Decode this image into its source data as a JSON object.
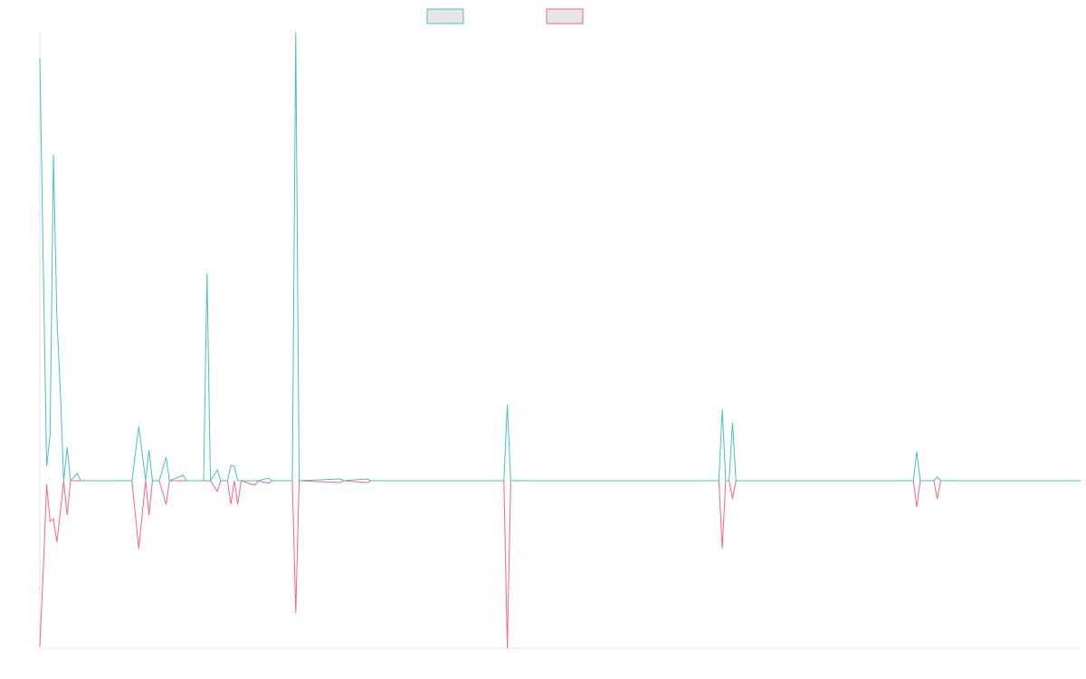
{
  "chart_data": {
    "type": "line",
    "x": [
      0,
      1,
      2,
      3,
      4,
      5,
      6,
      7,
      8,
      9,
      11,
      12,
      27,
      29,
      31,
      32,
      33,
      35,
      37,
      38,
      42,
      43,
      48,
      49,
      50,
      52,
      53,
      55,
      56,
      57,
      58,
      59,
      63,
      64,
      67,
      68,
      74,
      75,
      76,
      88,
      89,
      96,
      97,
      136,
      137,
      138,
      199,
      200,
      201,
      202,
      203,
      204,
      256,
      257,
      258,
      262,
      263,
      264,
      305
    ],
    "series": [
      {
        "color": "#4bc0c0",
        "values": [
          467,
          240,
          16,
          50,
          360,
          180,
          100,
          0,
          37,
          0,
          8,
          0,
          0,
          60,
          0,
          34,
          0,
          0,
          26,
          0,
          6,
          0,
          0,
          229,
          0,
          12,
          0,
          0,
          17,
          16,
          0,
          0,
          0,
          0,
          3,
          0,
          0,
          495,
          0,
          2,
          0,
          2,
          0,
          0,
          84,
          0,
          0,
          79,
          0,
          0,
          64,
          0,
          0,
          32,
          0,
          0,
          4,
          0,
          0
        ]
      },
      {
        "color": "#ff6384",
        "values": [
          -183,
          -100,
          -4,
          -45,
          -42,
          -68,
          -35,
          0,
          -38,
          0,
          0,
          0,
          0,
          -75,
          0,
          -38,
          0,
          0,
          -26,
          0,
          0,
          0,
          0,
          0,
          0,
          -12,
          0,
          0,
          -26,
          0,
          -26,
          0,
          -5,
          0,
          -3,
          0,
          0,
          -146,
          0,
          -2,
          0,
          -2,
          0,
          0,
          -185,
          0,
          0,
          -75,
          0,
          0,
          -20,
          0,
          0,
          -29,
          0,
          0,
          -20,
          0,
          0
        ]
      }
    ],
    "xlim": [
      0,
      305
    ],
    "ylim": [
      -185,
      495
    ]
  }
}
